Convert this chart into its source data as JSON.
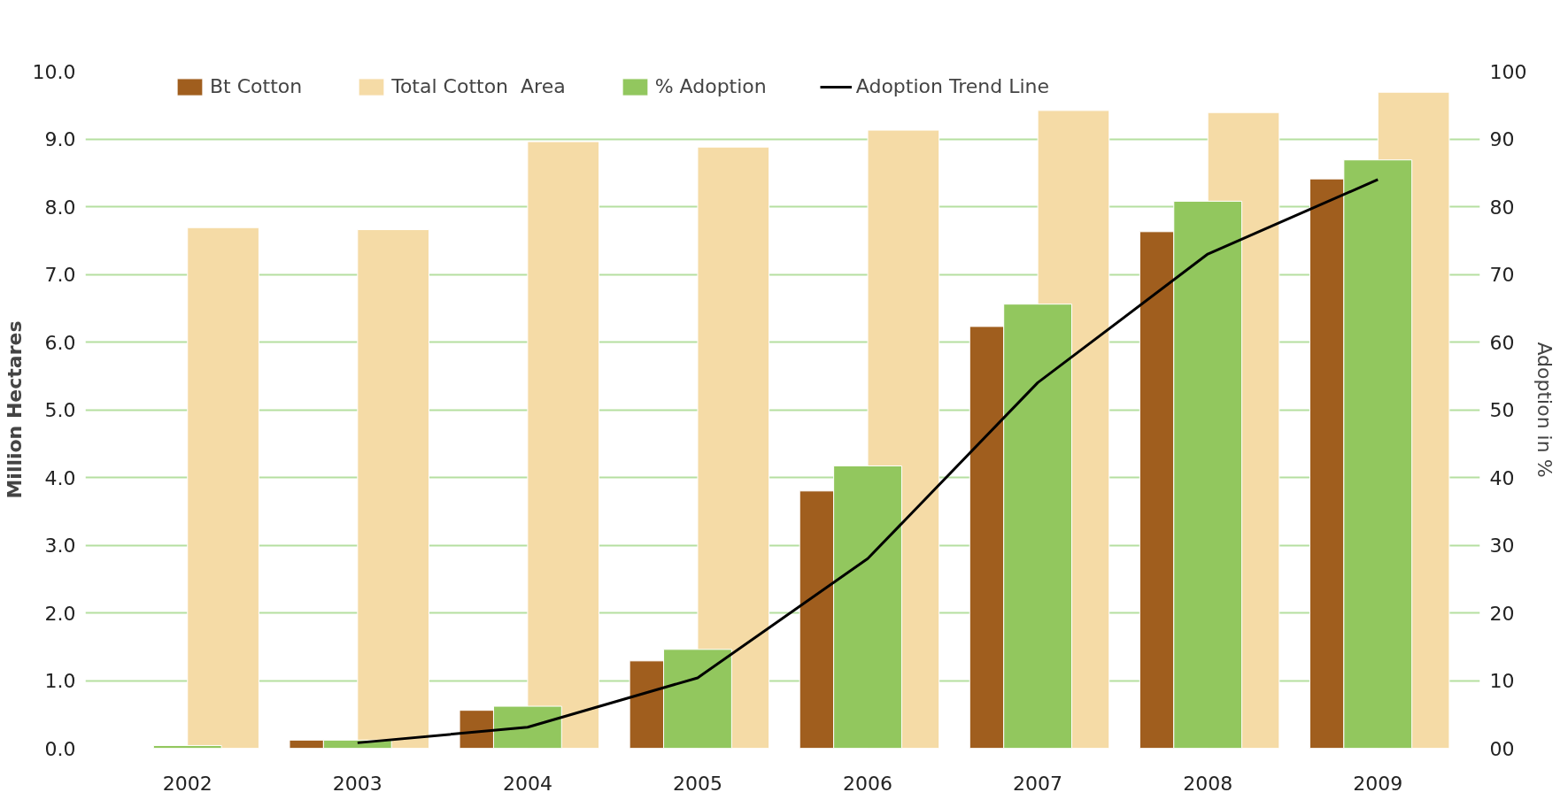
{
  "chart_data": {
    "type": "bar",
    "categories": [
      "2002",
      "2003",
      "2004",
      "2005",
      "2006",
      "2007",
      "2008",
      "2009"
    ],
    "series": [
      {
        "name": "Bt Cotton",
        "color": "#a05e1e",
        "values": [
          null,
          0.12,
          0.56,
          1.29,
          3.8,
          6.23,
          7.63,
          8.41
        ]
      },
      {
        "name": "Total Cotton  Area",
        "color": "#f5dba6",
        "values": [
          7.69,
          7.66,
          8.96,
          8.88,
          9.13,
          9.42,
          9.39,
          9.69
        ]
      },
      {
        "name": "% Adoption",
        "color": "#92c75e",
        "axis": "y2",
        "values": [
          0.4,
          1.2,
          6.2,
          14.6,
          41.7,
          65.6,
          80.8,
          86.9
        ]
      },
      {
        "name": "Adoption Trend Line",
        "type": "line",
        "color": "#000000",
        "axis": "y2",
        "values": [
          null,
          0.8,
          3.1,
          10.4,
          28,
          54,
          73,
          84
        ]
      }
    ],
    "ylabel": "Million Hectares",
    "y2label": "Adoption in %",
    "ylim": [
      0,
      10
    ],
    "yticks": [
      {
        "value": 0,
        "label": "0.0"
      },
      {
        "value": 1,
        "label": "1.0"
      },
      {
        "value": 2,
        "label": "2.0"
      },
      {
        "value": 3,
        "label": "3.0"
      },
      {
        "value": 4,
        "label": "4.0"
      },
      {
        "value": 5,
        "label": "5.0"
      },
      {
        "value": 6,
        "label": "6.0"
      },
      {
        "value": 7,
        "label": "7.0"
      },
      {
        "value": 8,
        "label": "8.0"
      },
      {
        "value": 9,
        "label": "9.0"
      },
      {
        "value": 10,
        "label": "10.0"
      }
    ],
    "y2lim": [
      0,
      100
    ],
    "y2ticks": [
      {
        "value": 0,
        "label": "00"
      },
      10,
      20,
      30,
      40,
      50,
      60,
      70,
      80,
      90,
      100
    ],
    "grid": "y",
    "legend": "top"
  }
}
